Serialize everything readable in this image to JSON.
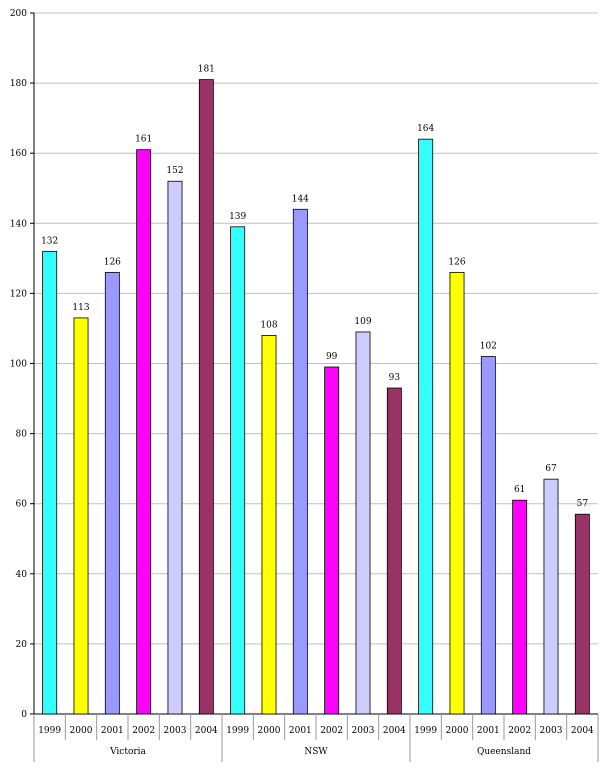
{
  "chart_data": {
    "type": "bar",
    "ylim": [
      0,
      200
    ],
    "ytick_step": 20,
    "grid": true,
    "legend": "none",
    "title": "",
    "xlabel": "",
    "ylabel": "",
    "years": [
      "1999",
      "2000",
      "2001",
      "2002",
      "2003",
      "2004"
    ],
    "year_colors": [
      "#33FFFF",
      "#FFFF00",
      "#9999FF",
      "#FF00FF",
      "#CCCCFF",
      "#993366"
    ],
    "groups": [
      {
        "name": "Victoria",
        "values": [
          132,
          113,
          126,
          161,
          152,
          181
        ]
      },
      {
        "name": "NSW",
        "values": [
          139,
          108,
          144,
          99,
          109,
          93
        ]
      },
      {
        "name": "Queensland",
        "values": [
          164,
          126,
          102,
          61,
          67,
          57
        ]
      }
    ]
  }
}
